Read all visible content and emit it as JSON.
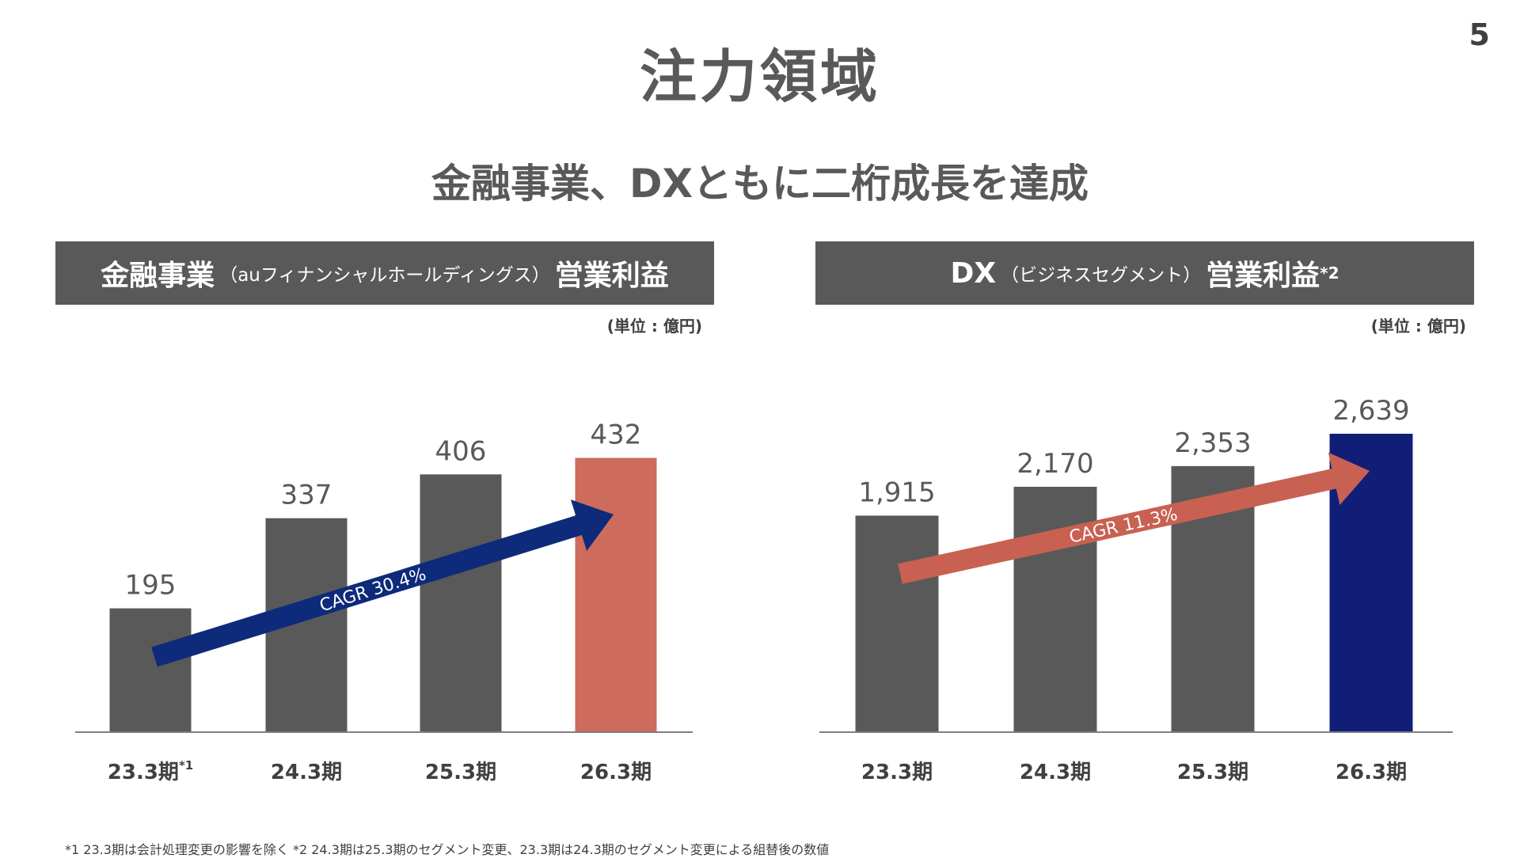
{
  "page_number": "5",
  "page_title": "注力領域",
  "headline": "金融事業、DXともに二桁成長を達成",
  "left_panel": {
    "title_main": "金融事業",
    "title_sub": "（auフィナンシャルホールディングス）",
    "title_tail": "営業利益",
    "unit": "(単位 : 億円)"
  },
  "right_panel": {
    "title_main": "DX",
    "title_sub": "（ビジネスセグメント）",
    "title_tail": "営業利益",
    "title_sup": "*2",
    "unit": "(単位 : 億円)"
  },
  "chart_data": [
    {
      "type": "bar",
      "categories": [
        "23.3期",
        "24.3期",
        "25.3期",
        "26.3期"
      ],
      "category_sups": [
        "*1",
        "",
        "",
        ""
      ],
      "values": [
        195,
        337,
        406,
        432
      ],
      "value_labels": [
        "195",
        "337",
        "406",
        "432"
      ],
      "bar_colors": [
        "#595959",
        "#595959",
        "#595959",
        "#CD6B5C"
      ],
      "ylim": [
        0,
        480
      ],
      "annotation": "CAGR 30.4%",
      "arrow_color": "#0E2A7A"
    },
    {
      "type": "bar",
      "categories": [
        "23.3期",
        "24.3期",
        "25.3期",
        "26.3期"
      ],
      "category_sups": [
        "",
        "",
        "",
        ""
      ],
      "values": [
        1915,
        2170,
        2353,
        2639
      ],
      "value_labels": [
        "1,915",
        "2,170",
        "2,353",
        "2,639"
      ],
      "bar_colors": [
        "#595959",
        "#595959",
        "#595959",
        "#111E78"
      ],
      "ylim": [
        0,
        2800
      ],
      "annotation": "CAGR 11.3%",
      "arrow_color": "#C86152"
    }
  ],
  "footnote": "*1 23.3期は会計処理変更の影響を除く *2 24.3期は25.3期のセグメント変更、23.3期は24.3期のセグメント変更による組替後の数値"
}
